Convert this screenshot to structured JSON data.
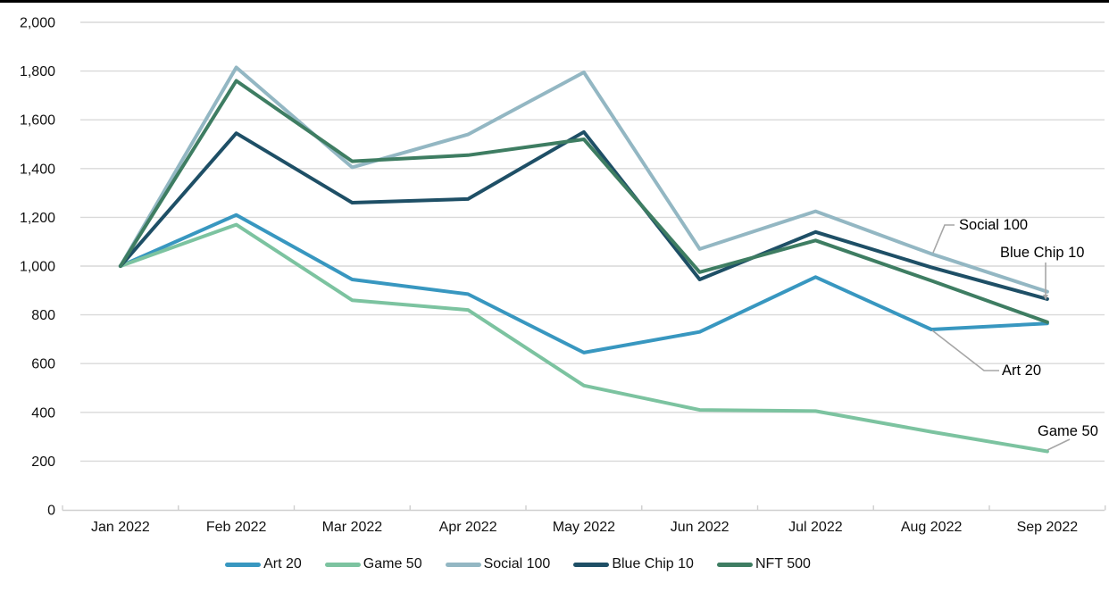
{
  "chart_data": {
    "type": "line",
    "title": "",
    "xlabel": "",
    "ylabel": "",
    "categories": [
      "Jan 2022",
      "Feb 2022",
      "Mar 2022",
      "Apr 2022",
      "May 2022",
      "Jun 2022",
      "Jul 2022",
      "Aug 2022",
      "Sep 2022"
    ],
    "series": [
      {
        "name": "Art 20",
        "color": "#3897c0",
        "values": [
          1000,
          1210,
          945,
          885,
          645,
          730,
          955,
          740,
          765
        ]
      },
      {
        "name": "Game 50",
        "color": "#7cc3a0",
        "values": [
          1000,
          1170,
          860,
          820,
          510,
          410,
          405,
          320,
          240
        ]
      },
      {
        "name": "Social 100",
        "color": "#93b7c3",
        "values": [
          1000,
          1815,
          1405,
          1540,
          1795,
          1070,
          1225,
          1050,
          895
        ]
      },
      {
        "name": "Blue Chip 10",
        "color": "#1e4f66",
        "values": [
          1000,
          1545,
          1260,
          1275,
          1550,
          945,
          1140,
          995,
          865
        ]
      },
      {
        "name": "NFT 500",
        "color": "#3e7d62",
        "values": [
          1000,
          1760,
          1430,
          1455,
          1520,
          975,
          1105,
          940,
          770
        ]
      }
    ],
    "ylim": [
      0,
      2000
    ],
    "y_ticks": [
      0,
      200,
      400,
      600,
      800,
      1000,
      1200,
      1400,
      1600,
      1800,
      2000
    ],
    "y_tick_labels": [
      "0",
      "200",
      "400",
      "600",
      "800",
      "1,000",
      "1,200",
      "1,400",
      "1,600",
      "1,800",
      "2,000"
    ],
    "grid": true,
    "legend_position": "bottom",
    "legend_entries": [
      "Art 20",
      "Game 50",
      "Social 100",
      "Blue Chip 10",
      "NFT 500"
    ],
    "annotations": [
      {
        "label": "Social 100"
      },
      {
        "label": "Blue Chip 10"
      },
      {
        "label": "Art 20"
      },
      {
        "label": "Game 50"
      }
    ],
    "colors": {
      "gridline": "#d9d9d9",
      "axis": "#cfcfcf",
      "leader_line": "#a6a6a6",
      "top_border": "#000000"
    }
  }
}
